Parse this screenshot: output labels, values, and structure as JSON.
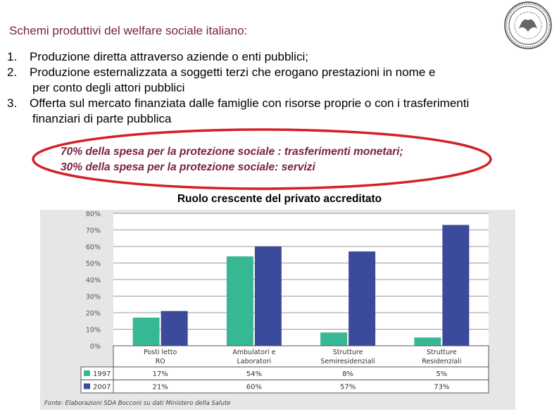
{
  "slide": {
    "title": "Schemi produttivi del welfare sociale italiano:",
    "items": [
      {
        "num": "1.",
        "text": "Produzione diretta attraverso aziende o enti pubblici;"
      },
      {
        "num": "2.",
        "text": "Produzione esternalizzata a soggetti terzi che erogano prestazioni in nome e",
        "cont": "per conto degli attori pubblici"
      },
      {
        "num": "3.",
        "text": "Offerta sul mercato finanziata dalle famiglie con risorse proprie o con i trasferimenti",
        "cont": "finanziari di parte pubblica"
      }
    ],
    "highlight_line1": "70% della spesa per la protezione sociale : trasferimenti monetari;",
    "highlight_line2": "30% della spesa per la protezione sociale: servizi",
    "subtitle": "Ruolo crescente del privato accreditato",
    "highlight_color": "#d42027",
    "accent_text_color": "#7a1f3d"
  },
  "chart_data": {
    "type": "bar",
    "categories": [
      "Posti letto RO",
      "Ambulatori e Laboratori",
      "Strutture Semiresidenziali",
      "Strutture Residenziali"
    ],
    "series": [
      {
        "name": "1997",
        "values": [
          17,
          54,
          8,
          5
        ],
        "labels": [
          "17%",
          "54%",
          "8%",
          "5%"
        ],
        "color": "#36b894"
      },
      {
        "name": "2007",
        "values": [
          21,
          60,
          57,
          73
        ],
        "labels": [
          "21%",
          "60%",
          "57%",
          "73%"
        ],
        "color": "#3c4a9c"
      }
    ],
    "ylim": [
      0,
      80
    ],
    "yticks": [
      "0%",
      "10%",
      "20%",
      "30%",
      "40%",
      "50%",
      "60%",
      "70%",
      "80%"
    ],
    "grid": true,
    "source": "Fonte: Elaborazioni SDA Bocconi su dati Ministero della Salute"
  }
}
